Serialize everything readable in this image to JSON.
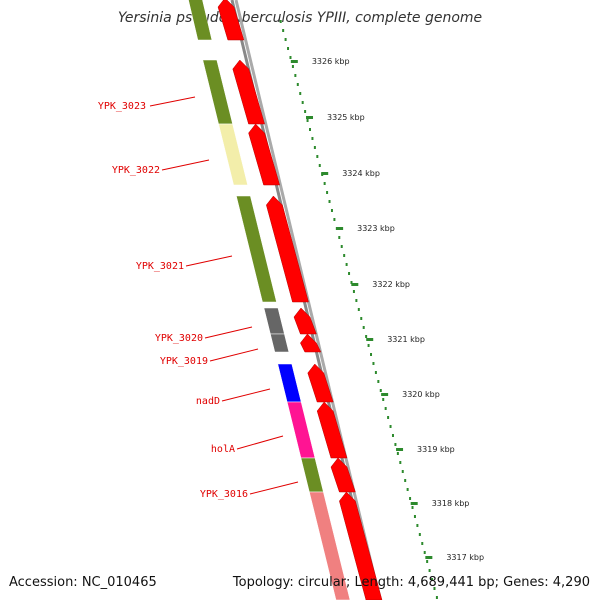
{
  "title": "Yersinia pseudotuberculosis YPIII, complete genome",
  "footer": {
    "accession": "Accession: NC_010465",
    "topology": "Topology: circular; Length: 4,689,441 bp; Genes: 4,290"
  },
  "colors": {
    "forward_arrow": "#ff0000",
    "backbone": "#888888",
    "tick": "#2d8a2d",
    "label": "#e00000",
    "cog_olive": "#6b8e23",
    "cog_pale_yellow": "#f3eeaa",
    "cog_gray": "#666666",
    "cog_blue": "#0000ff",
    "cog_pink": "#ff1493",
    "cog_salmon": "#f08080"
  },
  "ticks": [
    {
      "label": "3326 kbp"
    },
    {
      "label": "3325 kbp"
    },
    {
      "label": "3324 kbp"
    },
    {
      "label": "3323 kbp"
    },
    {
      "label": "3322 kbp"
    },
    {
      "label": "3321 kbp"
    },
    {
      "label": "3320 kbp"
    },
    {
      "label": "3319 kbp"
    },
    {
      "label": "3318 kbp"
    },
    {
      "label": "3317 kbp"
    }
  ],
  "genes": [
    {
      "label": "YPK_3023",
      "cog_color": "#6b8e23"
    },
    {
      "label": "YPK_3022",
      "cog_color": "#f3eeaa"
    },
    {
      "label": "YPK_3021",
      "cog_color": "#6b8e23"
    },
    {
      "label": "YPK_3020",
      "cog_color": "#666666"
    },
    {
      "label": "YPK_3019",
      "cog_color": "#666666"
    },
    {
      "label": "nadD",
      "cog_color": "#0000ff"
    },
    {
      "label": "holA",
      "cog_color": "#ff1493"
    },
    {
      "label": "YPK_3016",
      "cog_color": "#6b8e23"
    }
  ]
}
